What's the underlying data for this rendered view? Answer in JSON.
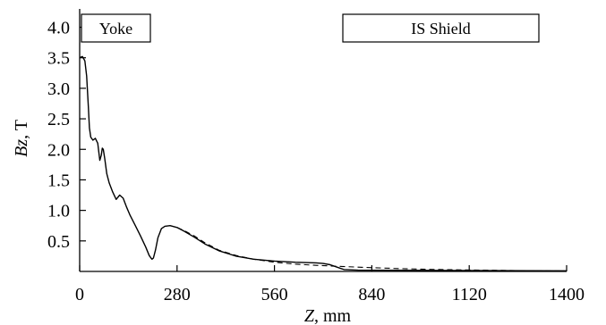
{
  "chart_data": {
    "type": "line",
    "xlabel_var": "Z",
    "xlabel_unit": ", mm",
    "ylabel_var": "Bz",
    "ylabel_unit": ", T",
    "xlim": [
      0,
      1400
    ],
    "ylim": [
      0,
      4.3
    ],
    "x_ticks": [
      0,
      280,
      560,
      840,
      1120,
      1400
    ],
    "x_tick_labels": [
      "0",
      "280",
      "560",
      "840",
      "1120",
      "1400"
    ],
    "y_ticks": [
      0.5,
      1.0,
      1.5,
      2.0,
      2.5,
      3.0,
      3.5,
      4.0
    ],
    "y_tick_labels": [
      "0.5",
      "1.0",
      "1.5",
      "2.0",
      "2.5",
      "3.0",
      "3.5",
      "4.0"
    ],
    "region_labels": {
      "yoke": "Yoke",
      "shield": "IS Shield"
    },
    "series": [
      {
        "style": "solid",
        "x": [
          0,
          8,
          15,
          20,
          25,
          28,
          32,
          38,
          45,
          52,
          58,
          62,
          65,
          68,
          72,
          78,
          85,
          95,
          105,
          115,
          125,
          135,
          145,
          160,
          175,
          190,
          200,
          205,
          208,
          212,
          218,
          225,
          235,
          245,
          260,
          280,
          300,
          330,
          360,
          400,
          450,
          500,
          560,
          620,
          680,
          700,
          720,
          740,
          760,
          800,
          1400
        ],
        "y": [
          3.5,
          3.52,
          3.45,
          3.2,
          2.7,
          2.35,
          2.2,
          2.15,
          2.18,
          2.1,
          1.82,
          1.9,
          2.02,
          2.0,
          1.85,
          1.6,
          1.45,
          1.3,
          1.18,
          1.25,
          1.2,
          1.05,
          0.92,
          0.75,
          0.58,
          0.4,
          0.26,
          0.22,
          0.2,
          0.22,
          0.35,
          0.55,
          0.7,
          0.74,
          0.75,
          0.72,
          0.66,
          0.56,
          0.45,
          0.34,
          0.25,
          0.2,
          0.17,
          0.15,
          0.14,
          0.13,
          0.11,
          0.07,
          0.03,
          0.02,
          0.01
        ]
      },
      {
        "style": "dashed",
        "x": [
          280,
          300,
          330,
          360,
          400,
          450,
          500,
          560,
          620,
          680,
          740,
          800,
          900,
          1000,
          1100,
          1200,
          1300,
          1400
        ],
        "y": [
          0.72,
          0.67,
          0.58,
          0.47,
          0.35,
          0.26,
          0.2,
          0.15,
          0.12,
          0.1,
          0.085,
          0.07,
          0.05,
          0.035,
          0.025,
          0.018,
          0.012,
          0.008
        ]
      }
    ]
  }
}
